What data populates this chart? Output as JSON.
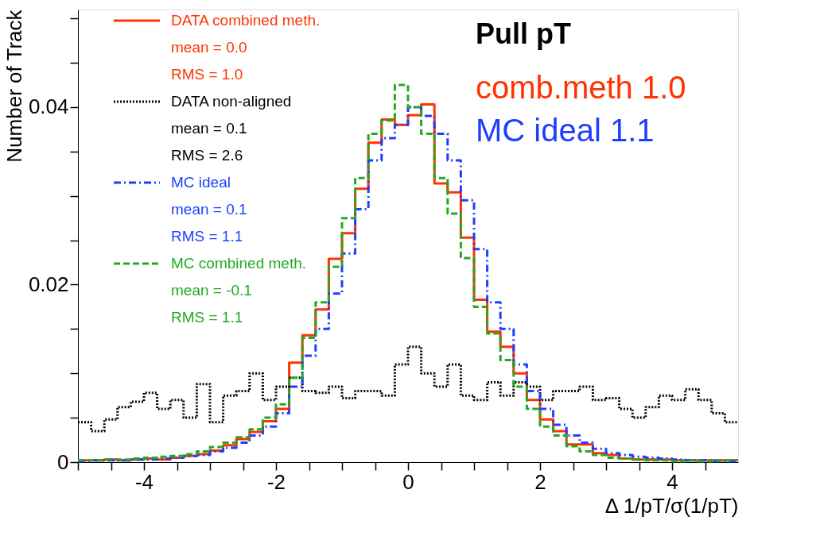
{
  "chart_data": {
    "type": "histogram",
    "title": "Pull pT",
    "xlabel": "Δ 1/pT/σ(1/pT)",
    "ylabel": "Number of Track",
    "bins": [
      -5,
      -4.8,
      -4.6,
      -4.4,
      -4.2,
      -4,
      -3.8,
      -3.6,
      -3.4,
      -3.2,
      -3,
      -2.8,
      -2.6,
      -2.4,
      -2.2,
      -2,
      -1.8,
      -1.6,
      -1.4,
      -1.2,
      -1,
      -0.8,
      -0.6,
      -0.4,
      -0.2,
      0,
      0.2,
      0.4,
      0.6,
      0.8,
      1,
      1.2,
      1.4,
      1.6,
      1.8,
      2,
      2.2,
      2.4,
      2.6,
      2.8,
      3,
      3.2,
      3.4,
      3.6,
      3.8,
      4,
      4.2,
      4.4,
      4.6,
      4.8,
      5
    ],
    "series": [
      {
        "name": "DATA combined meth.",
        "color": "#ff3300",
        "line_style": "solid",
        "values": [
          0.0002,
          0.0002,
          0.0003,
          0.0002,
          0.0003,
          0.0004,
          0.0003,
          0.0005,
          0.0007,
          0.0009,
          0.0013,
          0.0019,
          0.0026,
          0.0034,
          0.0046,
          0.006,
          0.0112,
          0.0143,
          0.0172,
          0.0229,
          0.0258,
          0.0308,
          0.036,
          0.0386,
          0.038,
          0.0391,
          0.0403,
          0.0314,
          0.0304,
          0.0253,
          0.0183,
          0.0147,
          0.013,
          0.01,
          0.007,
          0.0048,
          0.0035,
          0.002,
          0.002,
          0.001,
          0.0008,
          0.0004,
          0.0003,
          0.0003,
          0.0003,
          0.0002,
          0.0002,
          0.0002,
          0.0002,
          0.0002
        ]
      },
      {
        "name": "DATA non-aligned",
        "color": "#000000",
        "line_style": "dotted",
        "values": [
          0.0045,
          0.0035,
          0.0048,
          0.0062,
          0.0068,
          0.0078,
          0.006,
          0.007,
          0.005,
          0.0088,
          0.0045,
          0.0075,
          0.008,
          0.01,
          0.007,
          0.0085,
          0.0095,
          0.008,
          0.0078,
          0.0085,
          0.0072,
          0.008,
          0.008,
          0.0075,
          0.011,
          0.013,
          0.01,
          0.0085,
          0.011,
          0.0075,
          0.007,
          0.009,
          0.0075,
          0.009,
          0.0085,
          0.007,
          0.008,
          0.008,
          0.0085,
          0.007,
          0.0072,
          0.006,
          0.005,
          0.0062,
          0.0075,
          0.007,
          0.0082,
          0.007,
          0.0055,
          0.0045
        ]
      },
      {
        "name": "MC ideal",
        "color": "#1f3fff",
        "line_style": "dashdot",
        "values": [
          0.0001,
          0.0002,
          0.0002,
          0.0002,
          0.0003,
          0.0003,
          0.0004,
          0.0005,
          0.0007,
          0.0008,
          0.0012,
          0.0016,
          0.0022,
          0.003,
          0.004,
          0.0055,
          0.0085,
          0.012,
          0.015,
          0.019,
          0.0235,
          0.0285,
          0.034,
          0.0365,
          0.038,
          0.04,
          0.039,
          0.037,
          0.034,
          0.0295,
          0.024,
          0.018,
          0.015,
          0.011,
          0.008,
          0.006,
          0.0042,
          0.003,
          0.0022,
          0.0015,
          0.001,
          0.0008,
          0.0006,
          0.0005,
          0.0004,
          0.0003,
          0.0002,
          0.0002,
          0.0001,
          0.0001
        ]
      },
      {
        "name": "MC combined meth.",
        "color": "#22aa22",
        "line_style": "dashed",
        "values": [
          0.0002,
          0.0002,
          0.0003,
          0.0003,
          0.0004,
          0.0005,
          0.0006,
          0.0007,
          0.0009,
          0.0012,
          0.0017,
          0.0022,
          0.0028,
          0.0037,
          0.005,
          0.0065,
          0.0095,
          0.014,
          0.018,
          0.022,
          0.0275,
          0.032,
          0.037,
          0.0385,
          0.0425,
          0.04,
          0.037,
          0.032,
          0.028,
          0.023,
          0.0175,
          0.0145,
          0.0115,
          0.0085,
          0.006,
          0.004,
          0.003,
          0.0018,
          0.0012,
          0.0008,
          0.0005,
          0.0004,
          0.0003,
          0.0002,
          0.0002,
          0.0001,
          0.0002,
          0.0001,
          0.0002,
          0.0002
        ]
      }
    ],
    "annotations": [
      "mean = 0.0",
      "RMS = 1.0",
      "mean = 0.1",
      "RMS = 2.6",
      "mean = 0.1",
      "RMS = 1.1",
      "mean = -0.1",
      "RMS = 1.1",
      "comb.meth 1.0",
      "MC ideal      1.1"
    ],
    "xlim": [
      -5,
      5
    ],
    "ylim": [
      0,
      0.051
    ],
    "xticks": [
      {
        "value": -5,
        "label": null
      },
      {
        "value": -4.5,
        "label": null
      },
      -4,
      {
        "value": -3.5,
        "label": null
      },
      {
        "value": -3,
        "label": null
      },
      {
        "value": -2.5,
        "label": null
      },
      -2,
      {
        "value": -1.5,
        "label": null
      },
      {
        "value": -1,
        "label": null
      },
      {
        "value": -0.5,
        "label": null
      },
      0,
      {
        "value": 0.5,
        "label": null
      },
      {
        "value": 1,
        "label": null
      },
      {
        "value": 1.5,
        "label": null
      },
      2,
      {
        "value": 2.5,
        "label": null
      },
      {
        "value": 3,
        "label": null
      },
      {
        "value": 3.5,
        "label": null
      },
      4,
      {
        "value": 4.5,
        "label": null
      }
    ],
    "yticks": [
      0,
      {
        "value": 0.005,
        "label": null
      },
      {
        "value": 0.01,
        "label": null
      },
      {
        "value": 0.015,
        "label": null
      },
      0.02,
      {
        "value": 0.025,
        "label": null
      },
      {
        "value": 0.03,
        "label": null
      },
      {
        "value": 0.035,
        "label": null
      },
      0.04,
      {
        "value": 0.045,
        "label": null
      },
      {
        "value": 0.05,
        "label": null
      }
    ],
    "grid": false,
    "legend": "top left"
  }
}
